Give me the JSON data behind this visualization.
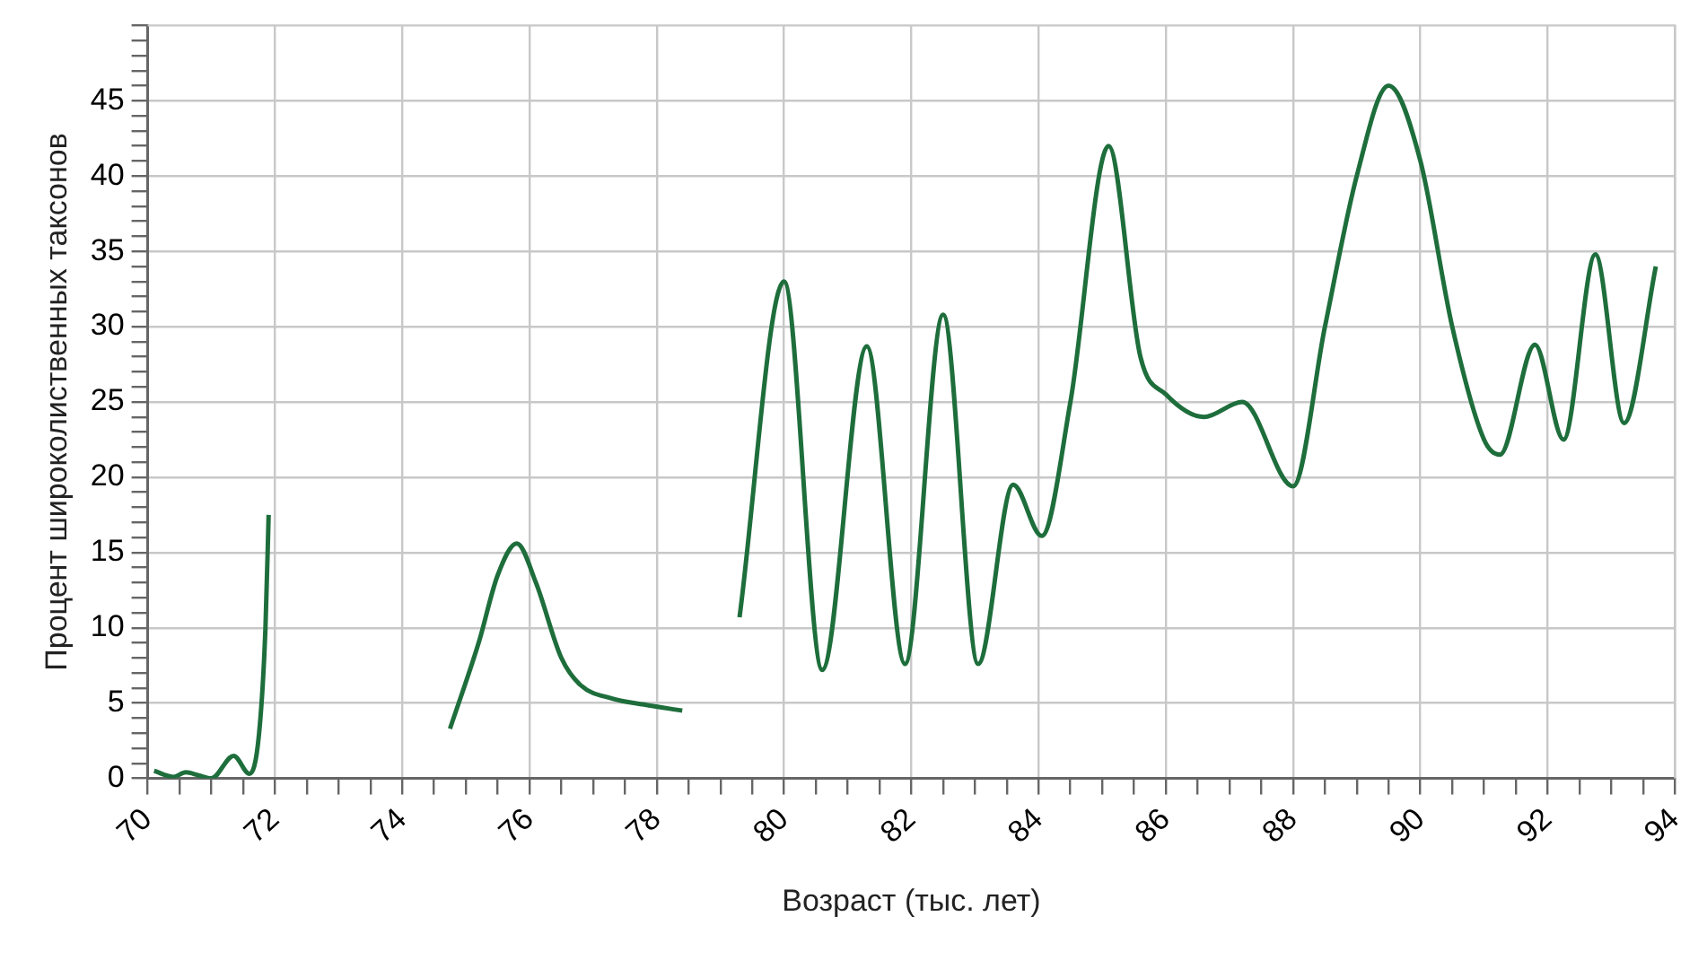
{
  "chart_data": {
    "type": "line",
    "xlabel": "Возраст (тыс. лет)",
    "ylabel": "Процент широколиственных таксонов",
    "x": [
      70.1,
      70.4,
      70.6,
      70.8,
      71.0,
      71.35,
      71.6,
      71.75,
      71.85,
      71.9,
      72.3,
      74.75,
      75.2,
      75.5,
      75.8,
      76.1,
      76.5,
      76.8,
      77.3,
      77.8,
      78.4,
      78.9,
      79.3,
      80.0,
      80.6,
      81.3,
      81.9,
      82.5,
      83.05,
      83.6,
      84.05,
      84.5,
      85.1,
      85.6,
      86.0,
      86.6,
      87.2,
      88.0,
      88.5,
      89.0,
      89.5,
      90.0,
      90.5,
      91.0,
      91.25,
      91.8,
      92.25,
      92.75,
      93.2,
      93.7
    ],
    "series": [
      {
        "color": "#1e6e3c",
        "values": [
          0.5,
          0.1,
          0.4,
          0.2,
          0.0,
          1.5,
          0.3,
          3,
          10,
          17.5,
          null,
          3.3,
          9,
          13.5,
          15.6,
          13,
          8,
          6.2,
          5.3,
          4.9,
          4.5,
          null,
          10.7,
          33,
          7.2,
          28.7,
          7.6,
          30.8,
          7.6,
          19.5,
          16.1,
          25,
          42,
          28,
          25.5,
          24,
          25,
          19.4,
          30,
          40,
          46,
          41,
          30,
          22.5,
          21.5,
          28.8,
          22.5,
          34.8,
          23.6,
          34
        ]
      }
    ],
    "xlim": [
      70,
      94
    ],
    "xticks": [
      70,
      {
        "value": 70.5,
        "label": null
      },
      {
        "value": 71,
        "label": null
      },
      {
        "value": 71.5,
        "label": null
      },
      72,
      {
        "value": 72.5,
        "label": null
      },
      {
        "value": 73,
        "label": null
      },
      {
        "value": 73.5,
        "label": null
      },
      74,
      {
        "value": 74.5,
        "label": null
      },
      {
        "value": 75,
        "label": null
      },
      {
        "value": 75.5,
        "label": null
      },
      76,
      {
        "value": 76.5,
        "label": null
      },
      {
        "value": 77,
        "label": null
      },
      {
        "value": 77.5,
        "label": null
      },
      78,
      {
        "value": 78.5,
        "label": null
      },
      {
        "value": 79,
        "label": null
      },
      {
        "value": 79.5,
        "label": null
      },
      80,
      {
        "value": 80.5,
        "label": null
      },
      {
        "value": 81,
        "label": null
      },
      {
        "value": 81.5,
        "label": null
      },
      82,
      {
        "value": 82.5,
        "label": null
      },
      {
        "value": 83,
        "label": null
      },
      {
        "value": 83.5,
        "label": null
      },
      84,
      {
        "value": 84.5,
        "label": null
      },
      {
        "value": 85,
        "label": null
      },
      {
        "value": 85.5,
        "label": null
      },
      86,
      {
        "value": 86.5,
        "label": null
      },
      {
        "value": 87,
        "label": null
      },
      {
        "value": 87.5,
        "label": null
      },
      88,
      {
        "value": 88.5,
        "label": null
      },
      {
        "value": 89,
        "label": null
      },
      {
        "value": 89.5,
        "label": null
      },
      90,
      {
        "value": 90.5,
        "label": null
      },
      {
        "value": 91,
        "label": null
      },
      {
        "value": 91.5,
        "label": null
      },
      92,
      {
        "value": 92.5,
        "label": null
      },
      {
        "value": 93,
        "label": null
      },
      {
        "value": 93.5,
        "label": null
      },
      94
    ],
    "ylim": [
      0,
      50
    ],
    "yticks": [
      0,
      {
        "value": 1,
        "label": null
      },
      {
        "value": 2,
        "label": null
      },
      {
        "value": 3,
        "label": null
      },
      {
        "value": 4,
        "label": null
      },
      5,
      {
        "value": 6,
        "label": null
      },
      {
        "value": 7,
        "label": null
      },
      {
        "value": 8,
        "label": null
      },
      {
        "value": 9,
        "label": null
      },
      10,
      {
        "value": 11,
        "label": null
      },
      {
        "value": 12,
        "label": null
      },
      {
        "value": 13,
        "label": null
      },
      {
        "value": 14,
        "label": null
      },
      15,
      {
        "value": 16,
        "label": null
      },
      {
        "value": 17,
        "label": null
      },
      {
        "value": 18,
        "label": null
      },
      {
        "value": 19,
        "label": null
      },
      20,
      {
        "value": 21,
        "label": null
      },
      {
        "value": 22,
        "label": null
      },
      {
        "value": 23,
        "label": null
      },
      {
        "value": 24,
        "label": null
      },
      25,
      {
        "value": 26,
        "label": null
      },
      {
        "value": 27,
        "label": null
      },
      {
        "value": 28,
        "label": null
      },
      {
        "value": 29,
        "label": null
      },
      30,
      {
        "value": 31,
        "label": null
      },
      {
        "value": 32,
        "label": null
      },
      {
        "value": 33,
        "label": null
      },
      {
        "value": 34,
        "label": null
      },
      35,
      {
        "value": 36,
        "label": null
      },
      {
        "value": 37,
        "label": null
      },
      {
        "value": 38,
        "label": null
      },
      {
        "value": 39,
        "label": null
      },
      40,
      {
        "value": 41,
        "label": null
      },
      {
        "value": 42,
        "label": null
      },
      {
        "value": 43,
        "label": null
      },
      {
        "value": 44,
        "label": null
      },
      45,
      {
        "value": 46,
        "label": null
      },
      {
        "value": 47,
        "label": null
      },
      {
        "value": 48,
        "label": null
      },
      {
        "value": 49,
        "label": null
      },
      {
        "value": 50,
        "label": null
      }
    ],
    "grid": true,
    "legend": false,
    "marker": "none",
    "line_style": "solid"
  }
}
